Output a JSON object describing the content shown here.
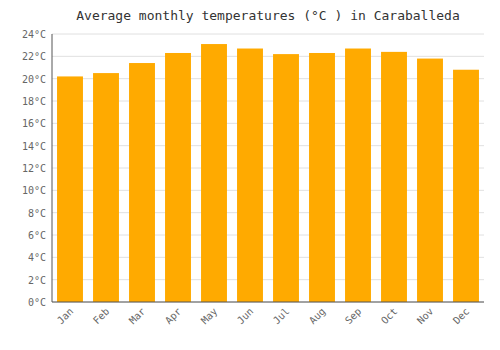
{
  "chart_data": {
    "type": "bar",
    "title": "Average monthly temperatures (°C ) in Caraballeda",
    "categories": [
      "Jan",
      "Feb",
      "Mar",
      "Apr",
      "May",
      "Jun",
      "Jul",
      "Aug",
      "Sep",
      "Oct",
      "Nov",
      "Dec"
    ],
    "values": [
      20.2,
      20.5,
      21.4,
      22.3,
      23.1,
      22.7,
      22.2,
      22.3,
      22.7,
      22.4,
      21.8,
      20.8
    ],
    "color": "#FFAA00",
    "ylim": [
      0,
      24
    ],
    "yticks": [
      {
        "value": 0,
        "label": "0°C"
      },
      {
        "value": 2,
        "label": "2°C"
      },
      {
        "value": 4,
        "label": "4°C"
      },
      {
        "value": 6,
        "label": "6°C"
      },
      {
        "value": 8,
        "label": "8°C"
      },
      {
        "value": 10,
        "label": "10°C"
      },
      {
        "value": 12,
        "label": "12°C"
      },
      {
        "value": 14,
        "label": "14°C"
      },
      {
        "value": 16,
        "label": "16°C"
      },
      {
        "value": 18,
        "label": "18°C"
      },
      {
        "value": 20,
        "label": "20°C"
      },
      {
        "value": 22,
        "label": "22°C"
      },
      {
        "value": 24,
        "label": "24°C"
      }
    ],
    "grid": true
  }
}
